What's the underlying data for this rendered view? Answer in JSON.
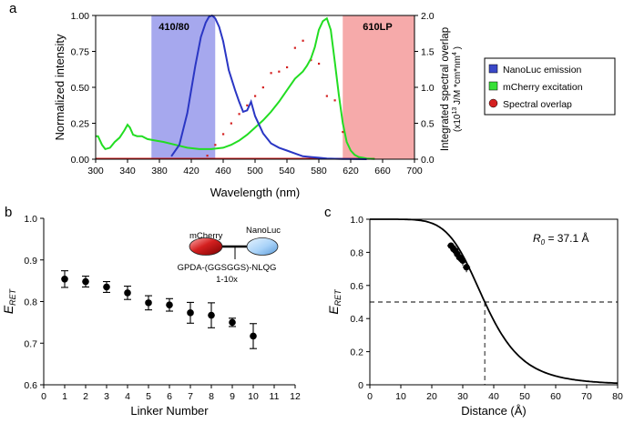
{
  "chart_data": [
    {
      "panel": "a",
      "type": "line",
      "xlabel": "Wavelength (nm)",
      "ylabel": "Normalized intensity",
      "y2label_line1": "Integrated spectral overlap",
      "y2label_line2": "(x10",
      "y2label_sup": "13",
      "y2label_rest": " J/M *cm*nm",
      "y2label_sup2": "4",
      "y2label_end": " )",
      "xlim": [
        300,
        700
      ],
      "ylim": [
        0,
        1
      ],
      "y2lim": [
        0,
        2
      ],
      "xticks": [
        "300",
        "340",
        "380",
        "420",
        "460",
        "500",
        "540",
        "580",
        "620",
        "660",
        "700"
      ],
      "yticks": [
        "0.00",
        "0.25",
        "0.50",
        "0.75",
        "1.00"
      ],
      "y2ticks": [
        "0.0",
        "0.5",
        "1.0",
        "1.5",
        "2.0"
      ],
      "filters": [
        {
          "label": "410/80",
          "range": [
            370,
            450
          ],
          "color": "#a6a8ee"
        },
        {
          "label": "610LP",
          "range": [
            610,
            700
          ],
          "color": "#f6aaaa"
        }
      ],
      "legend": [
        {
          "label": "NanoLuc emission",
          "color": "#3a48c8",
          "marker": "square"
        },
        {
          "label": "mCherry excitation",
          "color": "#36e036",
          "marker": "square"
        },
        {
          "label": "Spectral overlap",
          "color": "#d42020",
          "marker": "circle"
        }
      ],
      "series": [
        {
          "name": "NanoLuc emission",
          "color": "#2a36c4",
          "x": [
            395,
            405,
            415,
            425,
            432,
            438,
            442,
            446,
            450,
            455,
            460,
            467,
            475,
            480,
            485,
            490,
            495,
            500,
            510,
            520,
            530,
            540,
            550,
            560,
            570,
            580,
            590,
            600,
            610,
            620,
            640
          ],
          "y": [
            0.02,
            0.1,
            0.32,
            0.65,
            0.85,
            0.95,
            0.99,
            1.0,
            0.98,
            0.92,
            0.82,
            0.62,
            0.48,
            0.4,
            0.33,
            0.34,
            0.4,
            0.3,
            0.18,
            0.11,
            0.08,
            0.06,
            0.04,
            0.02,
            0.015,
            0.01,
            0.005,
            0.003,
            0.002,
            0.001,
            0.0
          ]
        },
        {
          "name": "mCherry excitation",
          "color": "#22dd22",
          "x": [
            300,
            303,
            308,
            312,
            318,
            324,
            330,
            336,
            340,
            343,
            347,
            352,
            358,
            365,
            375,
            385,
            400,
            415,
            430,
            445,
            460,
            470,
            480,
            490,
            500,
            510,
            520,
            530,
            540,
            550,
            560,
            565,
            570,
            575,
            580,
            585,
            590,
            595,
            600,
            605,
            610,
            615,
            620,
            625,
            630,
            635,
            640,
            645,
            650
          ],
          "y": [
            0.16,
            0.16,
            0.1,
            0.07,
            0.08,
            0.12,
            0.15,
            0.2,
            0.24,
            0.22,
            0.17,
            0.16,
            0.16,
            0.14,
            0.13,
            0.12,
            0.1,
            0.08,
            0.07,
            0.07,
            0.08,
            0.1,
            0.13,
            0.17,
            0.22,
            0.27,
            0.33,
            0.4,
            0.48,
            0.56,
            0.61,
            0.65,
            0.7,
            0.78,
            0.9,
            0.96,
            0.98,
            0.9,
            0.68,
            0.45,
            0.25,
            0.12,
            0.06,
            0.03,
            0.015,
            0.01,
            0.005,
            0.003,
            0.002
          ]
        },
        {
          "name": "Spectral overlap",
          "color": "#d42020",
          "x": [
            440,
            450,
            460,
            470,
            480,
            490,
            500,
            510,
            520,
            530,
            540,
            550,
            560,
            570,
            580,
            590,
            600,
            610
          ],
          "y": [
            0.05,
            0.2,
            0.35,
            0.5,
            0.63,
            0.75,
            0.88,
            1.0,
            1.2,
            1.22,
            1.28,
            1.55,
            1.65,
            1.38,
            1.33,
            0.88,
            0.82,
            0.38
          ]
        }
      ]
    },
    {
      "panel": "b",
      "type": "scatter",
      "xlabel": "Linker Number",
      "ylabel": "E",
      "ylabel_sub": "RET",
      "xlim": [
        0,
        12
      ],
      "ylim": [
        0.6,
        1.0
      ],
      "xticks": [
        "0",
        "1",
        "2",
        "3",
        "4",
        "5",
        "6",
        "7",
        "8",
        "9",
        "10",
        "11",
        "12"
      ],
      "yticks": [
        "0.6",
        "0.7",
        "0.8",
        "0.9",
        "1.0"
      ],
      "x": [
        1,
        2,
        3,
        4,
        5,
        6,
        7,
        8,
        9,
        10
      ],
      "values": [
        0.854,
        0.848,
        0.835,
        0.821,
        0.797,
        0.792,
        0.773,
        0.767,
        0.75,
        0.717
      ],
      "errors": [
        0.02,
        0.013,
        0.013,
        0.016,
        0.017,
        0.015,
        0.025,
        0.03,
        0.01,
        0.03
      ],
      "inset": {
        "label_left": "mCherry",
        "label_right": "NanoLuc",
        "linker_text": "GPDA-(GGSGGS)-NLQG",
        "repeat_text": "1-10x"
      }
    },
    {
      "panel": "c",
      "type": "line",
      "xlabel": "Distance (Å)",
      "ylabel": "E",
      "ylabel_sub": "RET",
      "xlim": [
        0,
        80
      ],
      "ylim": [
        0,
        1.0
      ],
      "xticks": [
        "0",
        "10",
        "20",
        "30",
        "40",
        "50",
        "60",
        "70",
        "80"
      ],
      "yticks": [
        "0",
        "0.2",
        "0.4",
        "0.6",
        "0.8",
        "1.0"
      ],
      "r0": 37.1,
      "annotation_prefix": "R",
      "annotation_sub": "0",
      "annotation_value": " = 37.1 Å",
      "dashed_y": 0.5,
      "dashed_x": 37.1,
      "data_points": {
        "x": [
          26.2,
          27.0,
          27.6,
          28.2,
          28.9,
          29.5,
          30.0,
          31.2
        ],
        "y": [
          0.84,
          0.82,
          0.81,
          0.79,
          0.77,
          0.76,
          0.75,
          0.71
        ],
        "xerr": [
          1.2,
          1.0,
          1.0,
          1.0,
          1.0,
          1.0,
          1.0,
          1.2
        ],
        "yerr": [
          0.02,
          0.02,
          0.03,
          0.02,
          0.02,
          0.02,
          0.03,
          0.03
        ]
      }
    }
  ],
  "panel_labels": {
    "a": "a",
    "b": "b",
    "c": "c"
  }
}
